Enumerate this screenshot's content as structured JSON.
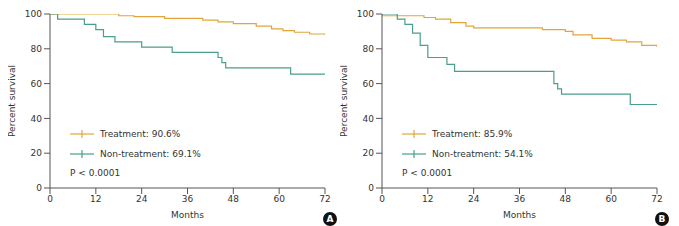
{
  "chart_data": [
    {
      "type": "line",
      "label": "A",
      "x_label": "Months",
      "y_label": "Percent survival",
      "xlim": [
        0,
        72
      ],
      "xticks": [
        0,
        12,
        24,
        36,
        48,
        60,
        72
      ],
      "ylim": [
        0,
        100
      ],
      "yticks": [
        0,
        20,
        40,
        60,
        80,
        100
      ],
      "legend": "lower left",
      "annotations": [
        "P < 0.0001"
      ],
      "series": [
        {
          "name": "Treatment: 90.6%",
          "color": "#e2a53c",
          "line_style": "step",
          "x": [
            0,
            18,
            22,
            30,
            40,
            44,
            48,
            54,
            58,
            61,
            64,
            68,
            72
          ],
          "values": [
            100,
            99,
            98.5,
            97.5,
            96.5,
            95.5,
            94.5,
            93,
            91.5,
            90.5,
            89.5,
            88.5,
            88
          ]
        },
        {
          "name": "Non-treatment: 69.1%",
          "color": "#4a9e8e",
          "line_style": "step",
          "x": [
            0,
            2,
            9,
            12,
            14,
            17,
            24,
            32,
            44,
            45,
            46,
            63,
            72
          ],
          "values": [
            100,
            97,
            94,
            91,
            87,
            84,
            81,
            78,
            75,
            72,
            69,
            65.5,
            65.5
          ]
        }
      ]
    },
    {
      "type": "line",
      "label": "B",
      "x_label": "Months",
      "y_label": "Percent survival",
      "xlim": [
        0,
        72
      ],
      "xticks": [
        0,
        12,
        24,
        36,
        48,
        60,
        72
      ],
      "ylim": [
        0,
        100
      ],
      "yticks": [
        0,
        20,
        40,
        60,
        80,
        100
      ],
      "legend": "lower left",
      "annotations": [
        "P < 0.0001"
      ],
      "series": [
        {
          "name": "Treatment: 85.9%",
          "color": "#e2a53c",
          "line_style": "step",
          "x": [
            0,
            11,
            14,
            18,
            22,
            24,
            42,
            48,
            50,
            55,
            60,
            64,
            68,
            72
          ],
          "values": [
            99,
            98,
            97,
            95,
            93,
            92,
            91,
            90,
            88,
            86,
            85,
            84,
            82,
            81
          ]
        },
        {
          "name": "Non-treatment: 54.1%",
          "color": "#4a9e8e",
          "line_style": "step",
          "x": [
            0,
            4,
            6,
            8,
            10,
            12,
            17,
            19,
            45,
            46,
            47,
            65,
            72
          ],
          "values": [
            100,
            97,
            94,
            89,
            82,
            75,
            71,
            67,
            60,
            57,
            54,
            48,
            48
          ]
        }
      ]
    }
  ]
}
